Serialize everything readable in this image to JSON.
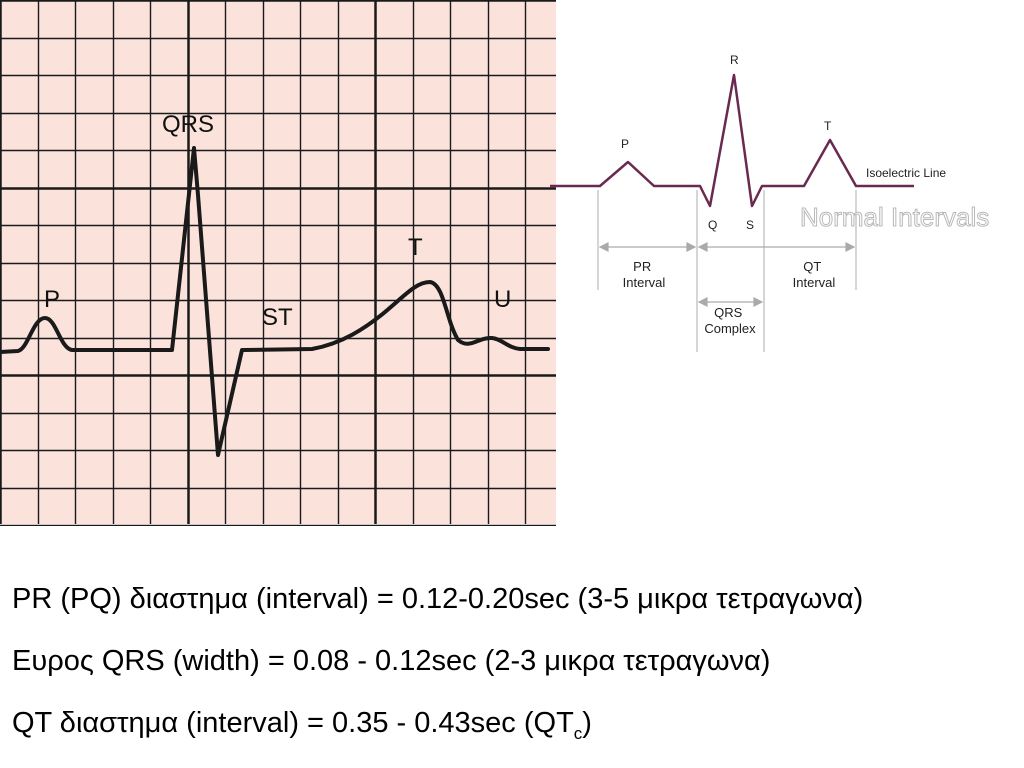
{
  "ecg_strip": {
    "labels": {
      "p": "P",
      "qrs": "QRS",
      "st": "ST",
      "t": "T",
      "u": "U"
    },
    "background_color": "#fbe3dc",
    "grid_color": "#1a1a1a"
  },
  "diagram": {
    "title": "Normal Intervals",
    "waves": {
      "p": "P",
      "r": "R",
      "q": "Q",
      "s": "S",
      "t": "T"
    },
    "isoelectric_label": "Isoelectric Line",
    "intervals": {
      "pr": [
        "PR",
        "Interval"
      ],
      "qrs": [
        "QRS",
        "Complex"
      ],
      "qt": [
        "QT",
        "Interval"
      ]
    },
    "trace_color": "#6a2a50"
  },
  "notes": {
    "line1": "PR (PQ) διαστημα (interval) = 0.12-0.20sec (3-5 μικρα τετραγωνα)",
    "line2": "Ευρος QRS (width) = 0.08 - 0.12sec (2-3 μικρα τετραγωνα)",
    "line3_main": "QT διαστημα (interval) = 0.35 - 0.43sec (QT",
    "line3_sub": "c",
    "line3_end": ")"
  }
}
